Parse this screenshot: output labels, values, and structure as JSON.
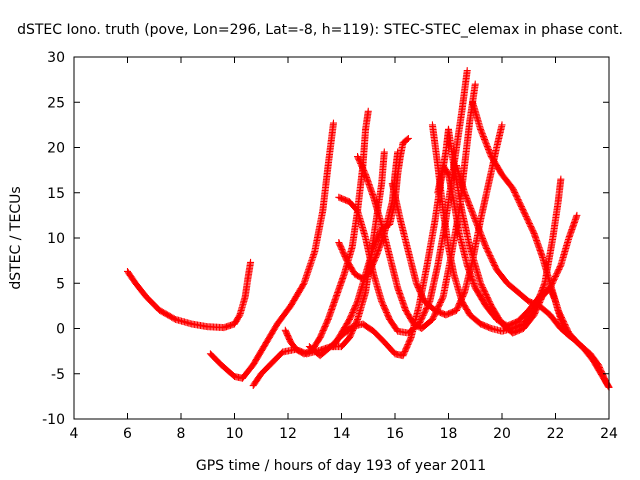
{
  "chart_data": {
    "type": "scatter",
    "title": "dSTEC Iono. truth (pove, Lon=296, Lat=-8, h=119): STEC-STEC_elemax in phase cont.",
    "xlabel": "GPS time / hours of day 193 of year 2011",
    "ylabel": "dSTEC  / TECUs",
    "xlim": [
      4,
      24
    ],
    "ylim": [
      -10,
      30
    ],
    "xticks": [
      4,
      6,
      8,
      10,
      12,
      14,
      16,
      18,
      20,
      22,
      24
    ],
    "yticks": [
      -10,
      -5,
      0,
      5,
      10,
      15,
      20,
      25,
      30
    ],
    "grid": false,
    "legend": "none",
    "marker": "+",
    "color": "#ff0000",
    "series": [
      {
        "points": [
          [
            6.0,
            6.3
          ],
          [
            6.3,
            5.0
          ],
          [
            6.7,
            3.5
          ],
          [
            7.2,
            2.0
          ],
          [
            7.8,
            1.0
          ],
          [
            8.4,
            0.5
          ],
          [
            9.0,
            0.2
          ],
          [
            9.6,
            0.1
          ],
          [
            10.0,
            0.5
          ],
          [
            10.2,
            1.5
          ],
          [
            10.4,
            3.5
          ],
          [
            10.5,
            5.5
          ],
          [
            10.6,
            7.3
          ]
        ]
      },
      {
        "points": [
          [
            9.1,
            -2.8
          ],
          [
            9.5,
            -4.0
          ],
          [
            10.0,
            -5.3
          ],
          [
            10.3,
            -5.5
          ],
          [
            10.7,
            -4.0
          ],
          [
            11.1,
            -2.0
          ],
          [
            11.6,
            0.5
          ],
          [
            12.1,
            2.5
          ],
          [
            12.6,
            5.0
          ],
          [
            13.0,
            8.5
          ],
          [
            13.3,
            13.0
          ],
          [
            13.5,
            18.0
          ],
          [
            13.7,
            22.7
          ]
        ]
      },
      {
        "points": [
          [
            10.7,
            -6.3
          ],
          [
            11.0,
            -5.0
          ],
          [
            11.4,
            -3.8
          ],
          [
            11.8,
            -2.6
          ],
          [
            12.3,
            -2.3
          ],
          [
            12.7,
            -2.8
          ],
          [
            13.2,
            -2.4
          ],
          [
            13.6,
            -2.0
          ],
          [
            14.0,
            -2.0
          ],
          [
            14.3,
            -1.0
          ],
          [
            14.6,
            1.0
          ],
          [
            14.9,
            4.0
          ],
          [
            15.1,
            8.0
          ],
          [
            15.3,
            12.0
          ],
          [
            15.5,
            16.0
          ],
          [
            15.6,
            19.5
          ]
        ]
      },
      {
        "points": [
          [
            11.9,
            -0.2
          ],
          [
            12.1,
            -1.5
          ],
          [
            12.3,
            -2.3
          ],
          [
            12.6,
            -2.8
          ],
          [
            12.9,
            -2.4
          ],
          [
            13.2,
            -1.0
          ],
          [
            13.5,
            1.0
          ],
          [
            13.8,
            3.5
          ],
          [
            14.1,
            6.0
          ],
          [
            14.4,
            9.0
          ],
          [
            14.6,
            13.0
          ],
          [
            14.8,
            18.0
          ],
          [
            14.9,
            22.0
          ],
          [
            15.0,
            24.0
          ]
        ]
      },
      {
        "points": [
          [
            12.8,
            -2.0
          ],
          [
            13.2,
            -3.0
          ],
          [
            13.6,
            -2.0
          ],
          [
            14.0,
            -0.8
          ],
          [
            14.4,
            0.2
          ],
          [
            14.8,
            0.5
          ],
          [
            15.2,
            -0.3
          ],
          [
            15.6,
            -1.5
          ],
          [
            16.0,
            -2.8
          ],
          [
            16.3,
            -3.0
          ],
          [
            16.6,
            -1.0
          ],
          [
            16.9,
            2.5
          ],
          [
            17.2,
            7.0
          ],
          [
            17.5,
            12.0
          ],
          [
            17.7,
            16.0
          ],
          [
            17.9,
            19.5
          ],
          [
            18.0,
            22.0
          ]
        ]
      },
      {
        "points": [
          [
            13.7,
            -2.0
          ],
          [
            14.0,
            -0.5
          ],
          [
            14.3,
            1.0
          ],
          [
            14.6,
            3.0
          ],
          [
            14.9,
            6.0
          ],
          [
            15.2,
            9.0
          ],
          [
            15.5,
            11.0
          ],
          [
            15.8,
            11.5
          ],
          [
            16.0,
            14.0
          ],
          [
            16.1,
            17.0
          ],
          [
            16.2,
            19.0
          ],
          [
            16.3,
            20.5
          ],
          [
            16.5,
            21.0
          ]
        ]
      },
      {
        "points": [
          [
            13.9,
            14.5
          ],
          [
            14.3,
            14.0
          ],
          [
            14.6,
            13.0
          ],
          [
            14.9,
            10.0
          ],
          [
            15.2,
            6.0
          ],
          [
            15.5,
            3.0
          ],
          [
            15.8,
            1.0
          ],
          [
            16.1,
            -0.3
          ],
          [
            16.5,
            -0.5
          ],
          [
            16.9,
            0.5
          ],
          [
            17.3,
            3.0
          ],
          [
            17.6,
            7.0
          ],
          [
            17.9,
            12.0
          ],
          [
            18.1,
            16.0
          ],
          [
            18.3,
            20.0
          ],
          [
            18.5,
            24.0
          ],
          [
            18.7,
            28.5
          ]
        ]
      },
      {
        "points": [
          [
            13.9,
            9.5
          ],
          [
            14.2,
            7.5
          ],
          [
            14.5,
            6.0
          ],
          [
            14.8,
            5.5
          ],
          [
            15.0,
            6.0
          ],
          [
            15.3,
            8.0
          ],
          [
            15.6,
            10.5
          ],
          [
            15.9,
            14.0
          ],
          [
            16.0,
            17.0
          ],
          [
            16.1,
            19.5
          ]
        ]
      },
      {
        "points": [
          [
            14.6,
            19.0
          ],
          [
            14.9,
            17.0
          ],
          [
            15.2,
            14.5
          ],
          [
            15.5,
            11.5
          ],
          [
            15.8,
            8.0
          ],
          [
            16.1,
            4.5
          ],
          [
            16.4,
            2.0
          ],
          [
            16.7,
            0.5
          ],
          [
            17.0,
            0.0
          ],
          [
            17.4,
            1.0
          ],
          [
            17.8,
            3.5
          ],
          [
            18.1,
            8.0
          ],
          [
            18.4,
            13.0
          ],
          [
            18.6,
            18.0
          ],
          [
            18.8,
            23.0
          ],
          [
            19.0,
            27.0
          ]
        ]
      },
      {
        "points": [
          [
            15.9,
            16.0
          ],
          [
            16.2,
            12.0
          ],
          [
            16.5,
            8.5
          ],
          [
            16.8,
            5.0
          ],
          [
            17.1,
            3.0
          ],
          [
            17.5,
            2.0
          ],
          [
            17.9,
            1.5
          ],
          [
            18.3,
            2.0
          ],
          [
            18.6,
            4.0
          ],
          [
            18.9,
            7.5
          ],
          [
            19.2,
            12.0
          ],
          [
            19.5,
            16.0
          ],
          [
            19.8,
            20.0
          ],
          [
            20.0,
            22.5
          ]
        ]
      },
      {
        "points": [
          [
            17.4,
            22.5
          ],
          [
            17.6,
            18.0
          ],
          [
            17.8,
            13.0
          ],
          [
            18.0,
            9.0
          ],
          [
            18.2,
            6.0
          ],
          [
            18.5,
            3.0
          ],
          [
            18.8,
            1.5
          ],
          [
            19.2,
            0.5
          ],
          [
            19.6,
            0.0
          ],
          [
            20.0,
            -0.3
          ],
          [
            20.4,
            0.0
          ],
          [
            20.8,
            0.5
          ],
          [
            21.2,
            2.0
          ],
          [
            21.6,
            5.0
          ],
          [
            21.9,
            10.0
          ],
          [
            22.1,
            14.0
          ],
          [
            22.2,
            16.5
          ]
        ]
      },
      {
        "points": [
          [
            17.6,
            15.0
          ],
          [
            17.8,
            18.0
          ],
          [
            18.0,
            17.0
          ],
          [
            18.2,
            14.0
          ],
          [
            18.4,
            10.5
          ],
          [
            18.7,
            7.0
          ],
          [
            19.0,
            4.5
          ],
          [
            19.4,
            2.5
          ],
          [
            19.8,
            1.0
          ],
          [
            20.2,
            0.3
          ],
          [
            20.6,
            0.8
          ],
          [
            21.0,
            2.0
          ],
          [
            21.4,
            3.5
          ],
          [
            21.8,
            4.5
          ],
          [
            22.2,
            7.0
          ],
          [
            22.5,
            10.0
          ],
          [
            22.8,
            12.5
          ]
        ]
      },
      {
        "points": [
          [
            18.0,
            22.0
          ],
          [
            18.2,
            18.0
          ],
          [
            18.5,
            13.0
          ],
          [
            18.8,
            9.0
          ],
          [
            19.2,
            5.0
          ],
          [
            19.6,
            2.5
          ],
          [
            20.0,
            0.5
          ],
          [
            20.4,
            -0.5
          ],
          [
            20.8,
            0.0
          ],
          [
            21.2,
            1.5
          ],
          [
            21.5,
            3.5
          ],
          [
            21.8,
            4.5
          ],
          [
            22.0,
            3.0
          ],
          [
            22.2,
            1.0
          ],
          [
            22.4,
            -0.5
          ],
          [
            22.6,
            -1.0
          ]
        ]
      },
      {
        "points": [
          [
            18.9,
            25.0
          ],
          [
            19.2,
            22.0
          ],
          [
            19.6,
            19.0
          ],
          [
            20.0,
            17.0
          ],
          [
            20.4,
            15.5
          ],
          [
            20.8,
            13.0
          ],
          [
            21.2,
            10.5
          ],
          [
            21.5,
            8.0
          ],
          [
            21.8,
            5.0
          ],
          [
            22.1,
            2.0
          ],
          [
            22.5,
            -0.5
          ],
          [
            22.9,
            -1.8
          ],
          [
            23.3,
            -2.8
          ],
          [
            23.6,
            -4.0
          ],
          [
            23.9,
            -6.0
          ],
          [
            24.0,
            -6.5
          ]
        ]
      },
      {
        "points": [
          [
            18.3,
            18.0
          ],
          [
            18.6,
            15.0
          ],
          [
            19.0,
            12.0
          ],
          [
            19.4,
            9.0
          ],
          [
            19.8,
            6.5
          ],
          [
            20.2,
            5.0
          ],
          [
            20.6,
            4.0
          ],
          [
            21.0,
            3.0
          ],
          [
            21.4,
            2.5
          ],
          [
            21.8,
            1.5
          ],
          [
            22.2,
            0.0
          ],
          [
            22.6,
            -1.0
          ],
          [
            23.0,
            -2.0
          ],
          [
            23.4,
            -3.5
          ],
          [
            23.8,
            -5.5
          ],
          [
            24.0,
            -6.5
          ]
        ]
      }
    ]
  }
}
